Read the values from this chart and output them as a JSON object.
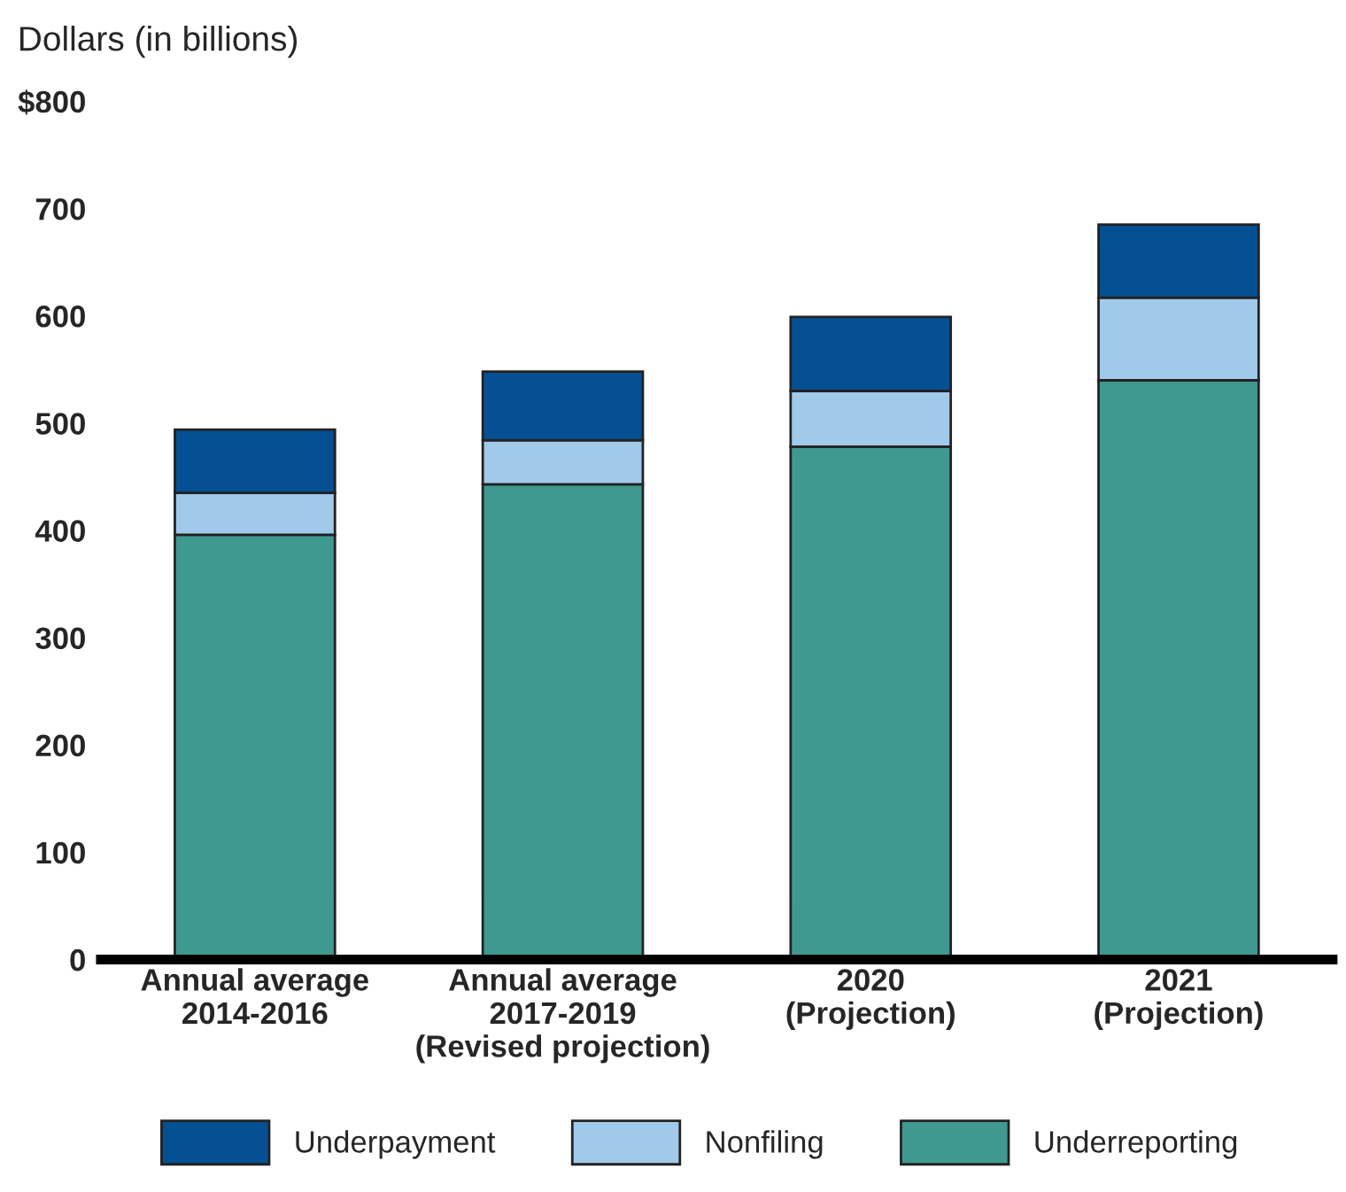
{
  "chart_data": {
    "type": "bar",
    "stacked": true,
    "title": "Dollars (in billions)",
    "categories": [
      "Annual average\n2014-2016",
      "Annual average\n2017-2019\n(Revised projection)",
      "2020\n(Projection)",
      "2021\n(Projection)"
    ],
    "series": [
      {
        "name": "Underreporting",
        "color": "#409990",
        "values": [
          396,
          443,
          478,
          540
        ]
      },
      {
        "name": "Nonfiling",
        "color": "#a0c9ea",
        "values": [
          39,
          41,
          52,
          77
        ]
      },
      {
        "name": "Underpayment",
        "color": "#045093",
        "values": [
          59,
          64,
          69,
          68
        ]
      }
    ],
    "ylim": [
      0,
      800
    ],
    "yticks": [
      0,
      100,
      200,
      300,
      400,
      500,
      600,
      700,
      {
        "value": 800,
        "label": "$800"
      }
    ],
    "grid": false,
    "legend": "bottom"
  }
}
